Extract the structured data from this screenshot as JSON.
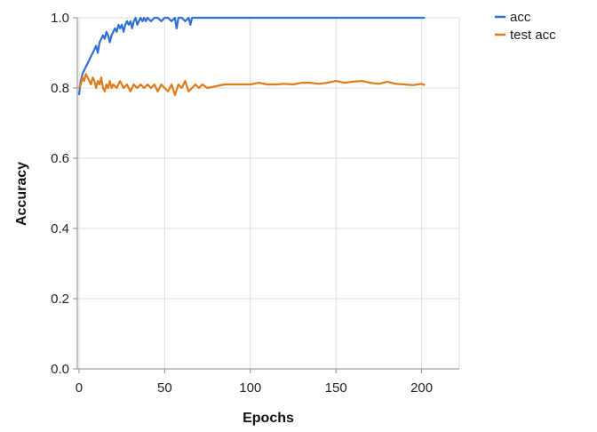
{
  "chart_data": {
    "type": "line",
    "title": "",
    "xlabel": "Epochs",
    "ylabel": "Accuracy",
    "xlim": [
      -1,
      222
    ],
    "ylim": [
      0,
      1
    ],
    "xticks": [
      0,
      50,
      100,
      150,
      200
    ],
    "yticks": [
      0,
      0.2,
      0.4,
      0.6,
      0.8,
      1
    ],
    "xtick_labels": [
      "0",
      "50",
      "100",
      "150",
      "200"
    ],
    "ytick_labels": [
      "0.0",
      "0.2",
      "0.4",
      "0.6",
      "0.8",
      "1.0"
    ],
    "grid": true,
    "legend_position": "top-right",
    "series": [
      {
        "name": "acc",
        "color": "#2f6fd6",
        "x": [
          0,
          1,
          2,
          3,
          4,
          5,
          6,
          7,
          8,
          9,
          10,
          11,
          12,
          13,
          14,
          15,
          16,
          17,
          18,
          19,
          20,
          21,
          22,
          23,
          24,
          25,
          26,
          27,
          28,
          29,
          30,
          31,
          32,
          33,
          34,
          35,
          36,
          37,
          38,
          39,
          40,
          42,
          44,
          46,
          48,
          50,
          52,
          54,
          56,
          57,
          58,
          60,
          62,
          64,
          65,
          66,
          68,
          70,
          80,
          100,
          150,
          202
        ],
        "y": [
          0.78,
          0.82,
          0.84,
          0.85,
          0.86,
          0.87,
          0.88,
          0.89,
          0.9,
          0.91,
          0.92,
          0.9,
          0.93,
          0.94,
          0.95,
          0.94,
          0.96,
          0.95,
          0.93,
          0.95,
          0.96,
          0.97,
          0.96,
          0.98,
          0.97,
          0.98,
          0.96,
          0.98,
          0.99,
          0.98,
          0.99,
          0.97,
          0.99,
          1.0,
          0.98,
          0.99,
          1.0,
          0.99,
          1.0,
          0.99,
          1.0,
          0.99,
          1.0,
          1.0,
          0.99,
          1.0,
          1.0,
          0.99,
          1.0,
          0.97,
          1.0,
          1.0,
          0.99,
          1.0,
          0.98,
          1.0,
          1.0,
          1.0,
          1.0,
          1.0,
          1.0,
          1.0
        ]
      },
      {
        "name": "test acc",
        "color": "#e07b1a",
        "x": [
          0,
          1,
          2,
          3,
          4,
          5,
          6,
          7,
          8,
          9,
          10,
          11,
          12,
          13,
          14,
          15,
          16,
          17,
          18,
          19,
          20,
          22,
          24,
          26,
          28,
          30,
          32,
          34,
          36,
          38,
          40,
          42,
          44,
          46,
          48,
          50,
          52,
          54,
          56,
          58,
          60,
          62,
          64,
          66,
          68,
          70,
          72,
          75,
          80,
          85,
          90,
          95,
          100,
          105,
          110,
          115,
          120,
          125,
          130,
          135,
          140,
          145,
          150,
          155,
          160,
          165,
          170,
          175,
          180,
          185,
          190,
          195,
          200,
          202
        ],
        "y": [
          0.8,
          0.81,
          0.83,
          0.82,
          0.84,
          0.83,
          0.82,
          0.81,
          0.83,
          0.82,
          0.8,
          0.82,
          0.81,
          0.83,
          0.8,
          0.79,
          0.81,
          0.8,
          0.82,
          0.8,
          0.81,
          0.8,
          0.82,
          0.8,
          0.81,
          0.79,
          0.81,
          0.8,
          0.81,
          0.8,
          0.81,
          0.8,
          0.81,
          0.79,
          0.81,
          0.8,
          0.79,
          0.81,
          0.78,
          0.81,
          0.8,
          0.82,
          0.79,
          0.8,
          0.81,
          0.8,
          0.81,
          0.8,
          0.805,
          0.81,
          0.81,
          0.81,
          0.81,
          0.815,
          0.81,
          0.81,
          0.812,
          0.81,
          0.815,
          0.815,
          0.812,
          0.815,
          0.82,
          0.815,
          0.818,
          0.82,
          0.815,
          0.812,
          0.818,
          0.812,
          0.81,
          0.808,
          0.812,
          0.808
        ]
      }
    ]
  }
}
